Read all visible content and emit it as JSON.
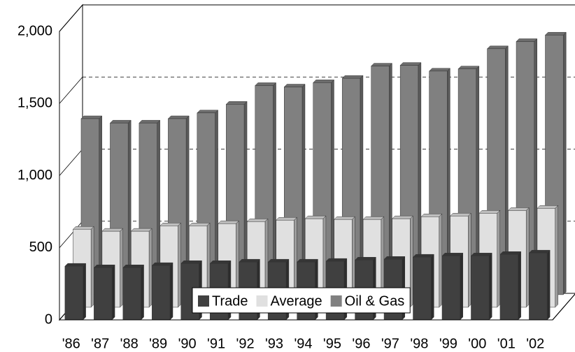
{
  "chart_data": {
    "type": "bar3d",
    "categories": [
      "'86",
      "'87",
      "'88",
      "'89",
      "'90",
      "'91",
      "'92",
      "'93",
      "'94",
      "'95",
      "'96",
      "'97",
      "'98",
      "'99",
      "'00",
      "'01",
      "'02"
    ],
    "series": [
      {
        "name": "Trade",
        "color": "#404040",
        "values": [
          372,
          362,
          362,
          377,
          391,
          391,
          401,
          401,
          401,
          406,
          415,
          420,
          435,
          444,
          444,
          454,
          464
        ]
      },
      {
        "name": "Average",
        "color": "#e0e0e0",
        "values": [
          541,
          527,
          527,
          565,
          565,
          580,
          594,
          604,
          614,
          609,
          609,
          614,
          628,
          633,
          652,
          671,
          686
        ]
      },
      {
        "name": "Oil & Gas",
        "color": "#808080",
        "values": [
          1220,
          1190,
          1190,
          1220,
          1260,
          1320,
          1450,
          1440,
          1470,
          1500,
          1585,
          1590,
          1550,
          1565,
          1705,
          1755,
          1800
        ]
      }
    ],
    "ylim": [
      0,
      2000
    ],
    "yticks": [
      0,
      500,
      {
        "value": 1000,
        "label": "1,000"
      },
      {
        "value": 1500,
        "label": "1,500"
      },
      {
        "value": 2000,
        "label": "2,000"
      }
    ],
    "grid": true,
    "legend": "bottom"
  }
}
